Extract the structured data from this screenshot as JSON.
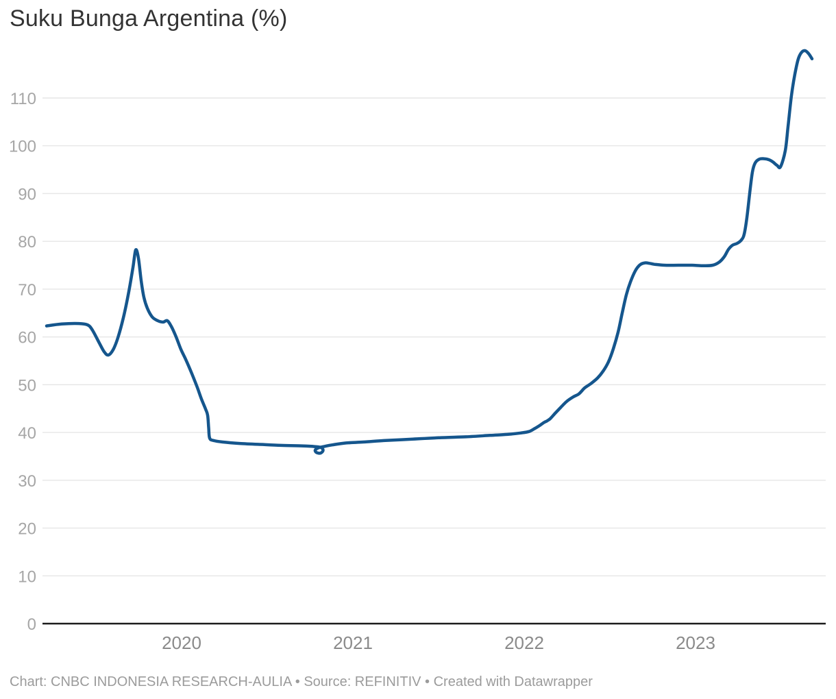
{
  "header": {
    "title": "Suku Bunga Argentina (%)"
  },
  "footer": {
    "text": "Chart: CNBC INDONESIA RESEARCH-AULIA • Source: REFINITIV • Created with Datawrapper"
  },
  "colors": {
    "line": "#15568d",
    "grid": "#e6e6e6",
    "axis": "#1c1c1c",
    "y_label": "#a6a6a6",
    "x_label": "#8a8a8a",
    "title": "#333333",
    "footer": "#9b9b9b"
  },
  "chart_data": {
    "type": "line",
    "title": "Suku Bunga Argentina (%)",
    "series_name": "Suku Bunga Argentina",
    "unit": "%",
    "xlabel": "",
    "ylabel": "",
    "grid": "horizontal",
    "legend": "none",
    "x_ticks": [
      2020,
      2021,
      2022,
      2023
    ],
    "x_tick_labels": [
      "2020",
      "2021",
      "2022",
      "2023"
    ],
    "xlim": [
      2019.19,
      2023.76
    ],
    "y_ticks": [
      0,
      10,
      20,
      30,
      40,
      50,
      60,
      70,
      80,
      90,
      100,
      110
    ],
    "ylim": [
      0,
      120.5
    ],
    "points": [
      [
        2019.212,
        62.3
      ],
      [
        2019.3,
        62.7
      ],
      [
        2019.4,
        62.8
      ],
      [
        2019.452,
        62.5
      ],
      [
        2019.48,
        61.4
      ],
      [
        2019.52,
        58.7
      ],
      [
        2019.548,
        56.9
      ],
      [
        2019.572,
        56.2
      ],
      [
        2019.6,
        57.3
      ],
      [
        2019.628,
        59.8
      ],
      [
        2019.66,
        64.0
      ],
      [
        2019.692,
        69.5
      ],
      [
        2019.716,
        74.5
      ],
      [
        2019.732,
        78.2
      ],
      [
        2019.748,
        76.5
      ],
      [
        2019.764,
        71.8
      ],
      [
        2019.78,
        68.3
      ],
      [
        2019.8,
        66.0
      ],
      [
        2019.828,
        64.2
      ],
      [
        2019.86,
        63.4
      ],
      [
        2019.892,
        63.1
      ],
      [
        2019.916,
        63.4
      ],
      [
        2019.94,
        62.2
      ],
      [
        2019.968,
        60.0
      ],
      [
        2019.996,
        57.4
      ],
      [
        2020.024,
        55.3
      ],
      [
        2020.06,
        52.3
      ],
      [
        2020.092,
        49.4
      ],
      [
        2020.116,
        47.0
      ],
      [
        2020.14,
        44.9
      ],
      [
        2020.152,
        43.6
      ],
      [
        2020.158,
        41.0
      ],
      [
        2020.164,
        38.8
      ],
      [
        2020.188,
        38.3
      ],
      [
        2020.24,
        38.0
      ],
      [
        2020.34,
        37.7
      ],
      [
        2020.46,
        37.5
      ],
      [
        2020.58,
        37.3
      ],
      [
        2020.7,
        37.2
      ],
      [
        2020.76,
        37.1
      ],
      [
        2020.81,
        36.9
      ],
      [
        2020.826,
        36.3
      ],
      [
        2020.812,
        35.7
      ],
      [
        2020.788,
        35.8
      ],
      [
        2020.78,
        36.3
      ],
      [
        2020.8,
        36.8
      ],
      [
        2020.836,
        37.1
      ],
      [
        2020.88,
        37.4
      ],
      [
        2020.96,
        37.8
      ],
      [
        2021.06,
        38.0
      ],
      [
        2021.18,
        38.3
      ],
      [
        2021.34,
        38.6
      ],
      [
        2021.5,
        38.9
      ],
      [
        2021.66,
        39.1
      ],
      [
        2021.8,
        39.4
      ],
      [
        2021.9,
        39.6
      ],
      [
        2021.98,
        39.9
      ],
      [
        2022.028,
        40.2
      ],
      [
        2022.06,
        40.8
      ],
      [
        2022.092,
        41.5
      ],
      [
        2022.116,
        42.1
      ],
      [
        2022.132,
        42.4
      ],
      [
        2022.152,
        42.9
      ],
      [
        2022.18,
        44.0
      ],
      [
        2022.212,
        45.2
      ],
      [
        2022.248,
        46.5
      ],
      [
        2022.284,
        47.4
      ],
      [
        2022.32,
        48.1
      ],
      [
        2022.352,
        49.3
      ],
      [
        2022.388,
        50.2
      ],
      [
        2022.428,
        51.4
      ],
      [
        2022.46,
        52.8
      ],
      [
        2022.492,
        54.8
      ],
      [
        2022.52,
        57.5
      ],
      [
        2022.548,
        61.0
      ],
      [
        2022.572,
        65.0
      ],
      [
        2022.596,
        68.8
      ],
      [
        2022.62,
        71.5
      ],
      [
        2022.648,
        73.8
      ],
      [
        2022.676,
        75.1
      ],
      [
        2022.704,
        75.5
      ],
      [
        2022.732,
        75.4
      ],
      [
        2022.76,
        75.2
      ],
      [
        2022.82,
        75.0
      ],
      [
        2022.9,
        75.0
      ],
      [
        2022.98,
        75.0
      ],
      [
        2023.04,
        74.9
      ],
      [
        2023.1,
        75.0
      ],
      [
        2023.14,
        75.7
      ],
      [
        2023.168,
        76.8
      ],
      [
        2023.192,
        78.3
      ],
      [
        2023.216,
        79.2
      ],
      [
        2023.244,
        79.6
      ],
      [
        2023.268,
        80.3
      ],
      [
        2023.284,
        81.5
      ],
      [
        2023.3,
        85.0
      ],
      [
        2023.316,
        90.0
      ],
      [
        2023.332,
        94.5
      ],
      [
        2023.348,
        96.4
      ],
      [
        2023.372,
        97.2
      ],
      [
        2023.4,
        97.3
      ],
      [
        2023.428,
        97.1
      ],
      [
        2023.452,
        96.6
      ],
      [
        2023.476,
        95.9
      ],
      [
        2023.496,
        95.6
      ],
      [
        2023.524,
        99.0
      ],
      [
        2023.54,
        104.0
      ],
      [
        2023.56,
        110.5
      ],
      [
        2023.58,
        115.0
      ],
      [
        2023.6,
        118.2
      ],
      [
        2023.62,
        119.6
      ],
      [
        2023.64,
        119.9
      ],
      [
        2023.66,
        119.3
      ],
      [
        2023.68,
        118.2
      ]
    ]
  }
}
